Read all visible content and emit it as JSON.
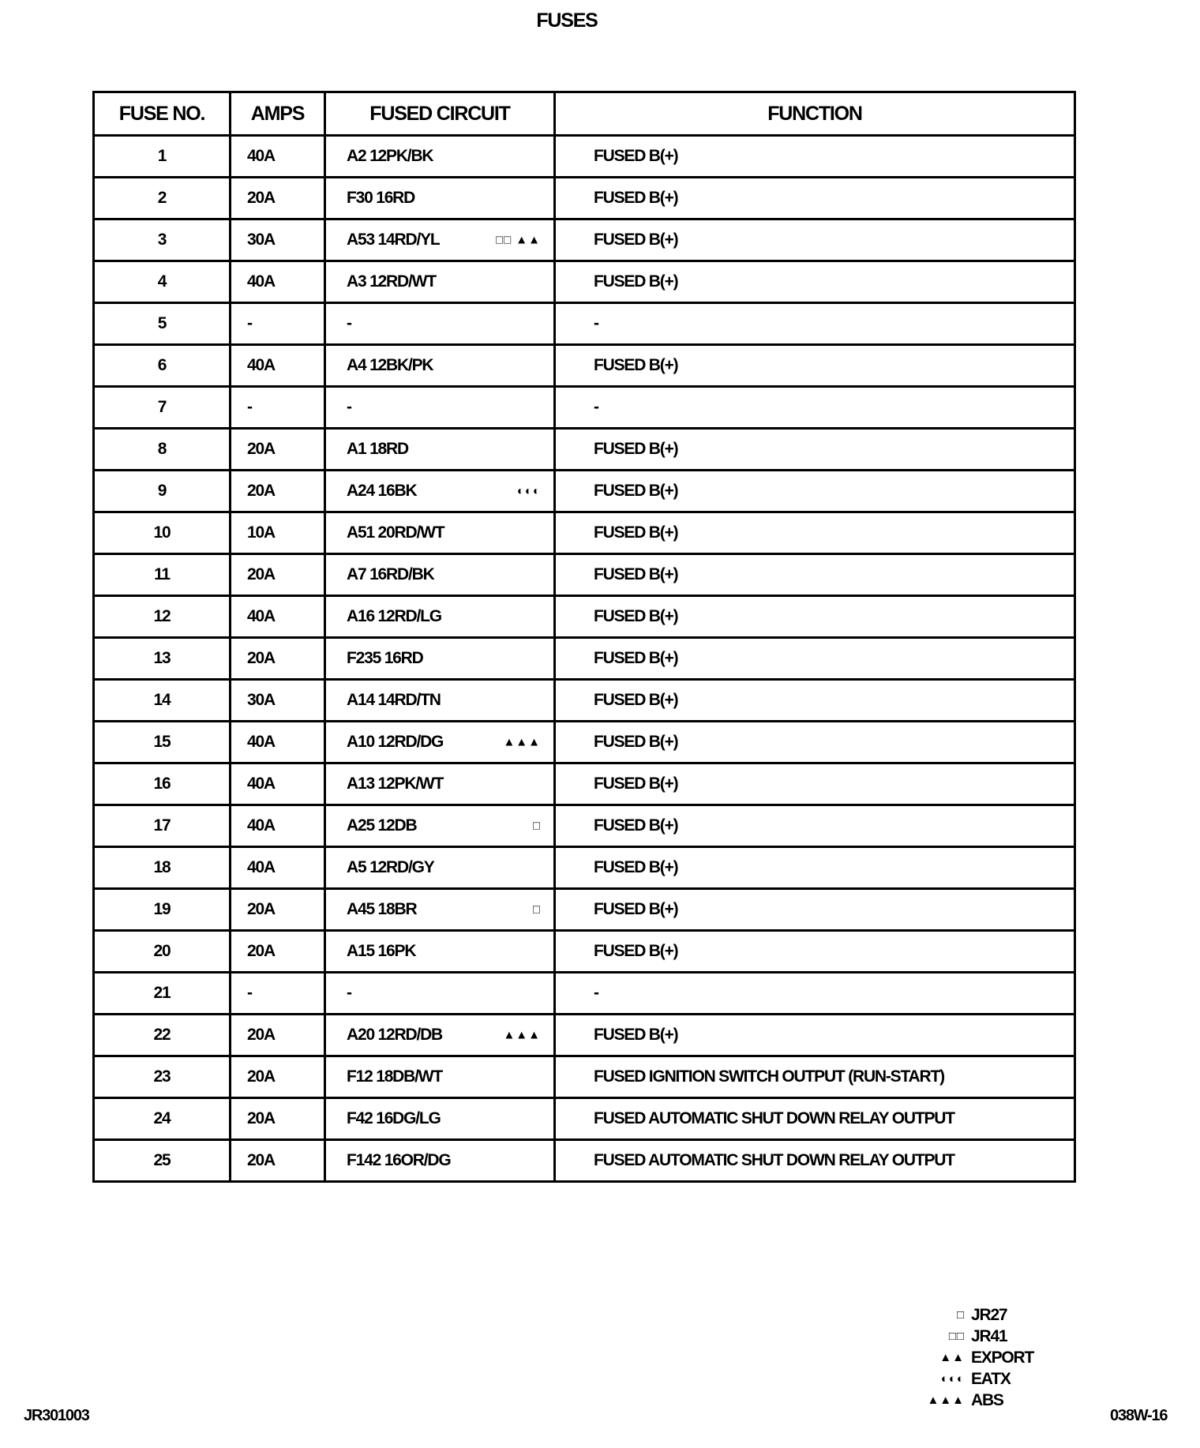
{
  "title": "FUSES",
  "headers": [
    "FUSE NO.",
    "AMPS",
    "FUSED CIRCUIT",
    "FUNCTION"
  ],
  "rows": [
    {
      "no": "1",
      "amps": "40A",
      "circuit": "A2 12PK/BK",
      "symbol": "",
      "function": "FUSED B(+)"
    },
    {
      "no": "2",
      "amps": "20A",
      "circuit": "F30 16RD",
      "symbol": "",
      "function": "FUSED B(+)"
    },
    {
      "no": "3",
      "amps": "30A",
      "circuit": "A53 14RD/YL",
      "symbol": "□□ ▲▲",
      "function": "FUSED B(+)"
    },
    {
      "no": "4",
      "amps": "40A",
      "circuit": "A3 12RD/WT",
      "symbol": "",
      "function": "FUSED B(+)"
    },
    {
      "no": "5",
      "amps": "-",
      "circuit": "-",
      "symbol": "",
      "function": "-"
    },
    {
      "no": "6",
      "amps": "40A",
      "circuit": "A4 12BK/PK",
      "symbol": "",
      "function": "FUSED B(+)"
    },
    {
      "no": "7",
      "amps": "-",
      "circuit": "-",
      "symbol": "",
      "function": "-"
    },
    {
      "no": "8",
      "amps": "20A",
      "circuit": "A1 18RD",
      "symbol": "",
      "function": "FUSED B(+)"
    },
    {
      "no": "9",
      "amps": "20A",
      "circuit": "A24 16BK",
      "symbol": "◐◐◐",
      "function": "FUSED B(+)"
    },
    {
      "no": "10",
      "amps": "10A",
      "circuit": "A51 20RD/WT",
      "symbol": "",
      "function": "FUSED B(+)"
    },
    {
      "no": "11",
      "amps": "20A",
      "circuit": "A7 16RD/BK",
      "symbol": "",
      "function": "FUSED B(+)"
    },
    {
      "no": "12",
      "amps": "40A",
      "circuit": "A16 12RD/LG",
      "symbol": "",
      "function": "FUSED B(+)"
    },
    {
      "no": "13",
      "amps": "20A",
      "circuit": "F235 16RD",
      "symbol": "",
      "function": "FUSED B(+)"
    },
    {
      "no": "14",
      "amps": "30A",
      "circuit": "A14 14RD/TN",
      "symbol": "",
      "function": "FUSED B(+)"
    },
    {
      "no": "15",
      "amps": "40A",
      "circuit": "A10 12RD/DG",
      "symbol": "▲▲▲",
      "function": "FUSED B(+)"
    },
    {
      "no": "16",
      "amps": "40A",
      "circuit": "A13 12PK/WT",
      "symbol": "",
      "function": "FUSED B(+)"
    },
    {
      "no": "17",
      "amps": "40A",
      "circuit": "A25 12DB",
      "symbol": "□",
      "function": "FUSED B(+)"
    },
    {
      "no": "18",
      "amps": "40A",
      "circuit": "A5 12RD/GY",
      "symbol": "",
      "function": "FUSED B(+)"
    },
    {
      "no": "19",
      "amps": "20A",
      "circuit": "A45 18BR",
      "symbol": "□",
      "function": "FUSED B(+)"
    },
    {
      "no": "20",
      "amps": "20A",
      "circuit": "A15 16PK",
      "symbol": "",
      "function": "FUSED B(+)"
    },
    {
      "no": "21",
      "amps": "-",
      "circuit": "-",
      "symbol": "",
      "function": "-"
    },
    {
      "no": "22",
      "amps": "20A",
      "circuit": "A20 12RD/DB",
      "symbol": "▲▲▲",
      "function": "FUSED B(+)"
    },
    {
      "no": "23",
      "amps": "20A",
      "circuit": "F12 18DB/WT",
      "symbol": "",
      "function": "FUSED IGNITION SWITCH OUTPUT (RUN-START)"
    },
    {
      "no": "24",
      "amps": "20A",
      "circuit": "F42 16DG/LG",
      "symbol": "",
      "function": "FUSED AUTOMATIC SHUT DOWN RELAY OUTPUT"
    },
    {
      "no": "25",
      "amps": "20A",
      "circuit": "F142 16OR/DG",
      "symbol": "",
      "function": "FUSED AUTOMATIC SHUT DOWN RELAY OUTPUT"
    }
  ],
  "legend": [
    {
      "symbol": "□",
      "label": "JR27"
    },
    {
      "symbol": "□□",
      "label": "JR41"
    },
    {
      "symbol": "▲▲",
      "label": "EXPORT"
    },
    {
      "symbol": "◐◐◐",
      "label": "EATX"
    },
    {
      "symbol": "▲▲▲",
      "label": "ABS"
    }
  ],
  "footer": {
    "left": "JR301003",
    "right": "038W-16"
  }
}
